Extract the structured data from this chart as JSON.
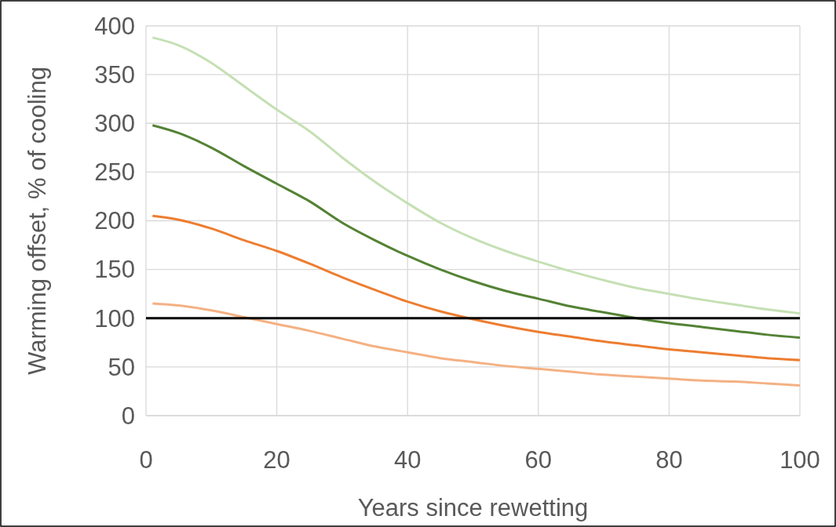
{
  "chart_data": {
    "type": "line",
    "xlabel": "Years since rewetting",
    "ylabel": "Warming offset, % of cooling",
    "x": [
      1,
      5,
      10,
      15,
      20,
      25,
      30,
      35,
      40,
      45,
      50,
      55,
      60,
      65,
      70,
      75,
      80,
      85,
      90,
      95,
      100
    ],
    "series": [
      {
        "color": "#c5e0b4",
        "values": [
          388,
          380,
          362,
          338,
          314,
          292,
          265,
          240,
          218,
          198,
          182,
          169,
          158,
          148,
          139,
          131,
          125,
          119,
          114,
          109,
          105
        ]
      },
      {
        "color": "#548235",
        "values": [
          298,
          290,
          275,
          256,
          238,
          220,
          198,
          180,
          164,
          150,
          138,
          128,
          120,
          112,
          106,
          100,
          95,
          91,
          87,
          83,
          80
        ]
      },
      {
        "color": "#ed7d31",
        "values": [
          205,
          201,
          192,
          180,
          169,
          156,
          142,
          129,
          117,
          107,
          99,
          92,
          86,
          81,
          76,
          72,
          68,
          65,
          62,
          59,
          57
        ]
      },
      {
        "color": "#f4b183",
        "values": [
          115,
          113,
          108,
          101,
          94,
          87,
          79,
          71,
          65,
          59,
          55,
          51,
          48,
          45,
          42,
          40,
          38,
          36,
          35,
          33,
          31
        ]
      }
    ],
    "xlim": [
      0,
      100
    ],
    "xticks": [
      0,
      20,
      40,
      60,
      80,
      100
    ],
    "ylim": [
      0,
      400
    ],
    "yticks": [
      0,
      50,
      100,
      150,
      200,
      250,
      300,
      350,
      400
    ],
    "grid": true,
    "ref_lines": [
      {
        "axis": "y",
        "value": 100,
        "color": "#000000"
      }
    ]
  }
}
